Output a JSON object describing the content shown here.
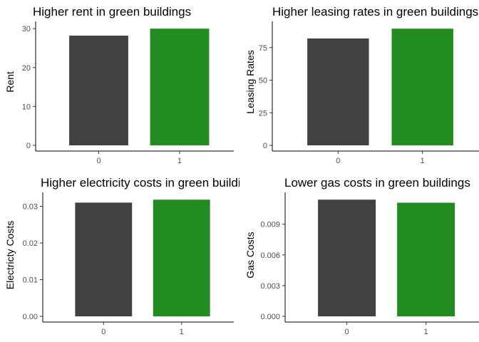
{
  "chart_data": [
    {
      "type": "bar",
      "title": "Higher rent in green buildings",
      "xlabel": "",
      "ylabel": "Rent",
      "categories": [
        "0",
        "1"
      ],
      "values": [
        28.2,
        30.0
      ],
      "colors": [
        "#424242",
        "#228b22"
      ],
      "ylim": [
        0,
        31.5
      ],
      "yticks": [
        0,
        10,
        20,
        30
      ],
      "ytick_labels": [
        "0",
        "10",
        "20",
        "30"
      ],
      "grid": false
    },
    {
      "type": "bar",
      "title": "Higher leasing rates in green buildings",
      "xlabel": "",
      "ylabel": "Leasing Rates",
      "categories": [
        "0",
        "1"
      ],
      "values": [
        82.0,
        89.5
      ],
      "colors": [
        "#424242",
        "#228b22"
      ],
      "ylim": [
        0,
        94
      ],
      "yticks": [
        0,
        25,
        50,
        75
      ],
      "ytick_labels": [
        "0",
        "25",
        "50",
        "75"
      ],
      "grid": false
    },
    {
      "type": "bar",
      "title": "Higher electricity costs in green buildings",
      "xlabel": "",
      "ylabel": "Electricty Costs",
      "categories": [
        "0",
        "1"
      ],
      "values": [
        0.031,
        0.0318
      ],
      "colors": [
        "#424242",
        "#228b22"
      ],
      "ylim": [
        0,
        0.0334
      ],
      "yticks": [
        0.0,
        0.01,
        0.02,
        0.03
      ],
      "ytick_labels": [
        "0.00",
        "0.01",
        "0.02",
        "0.03"
      ],
      "grid": false
    },
    {
      "type": "bar",
      "title": "Lower gas costs in green buildings",
      "xlabel": "",
      "ylabel": "Gas Costs",
      "categories": [
        "0",
        "1"
      ],
      "values": [
        0.0114,
        0.0111
      ],
      "colors": [
        "#424242",
        "#228b22"
      ],
      "ylim": [
        0,
        0.01197
      ],
      "yticks": [
        0.0,
        0.003,
        0.006,
        0.009
      ],
      "ytick_labels": [
        "0.000",
        "0.003",
        "0.006",
        "0.009"
      ],
      "grid": false
    }
  ]
}
